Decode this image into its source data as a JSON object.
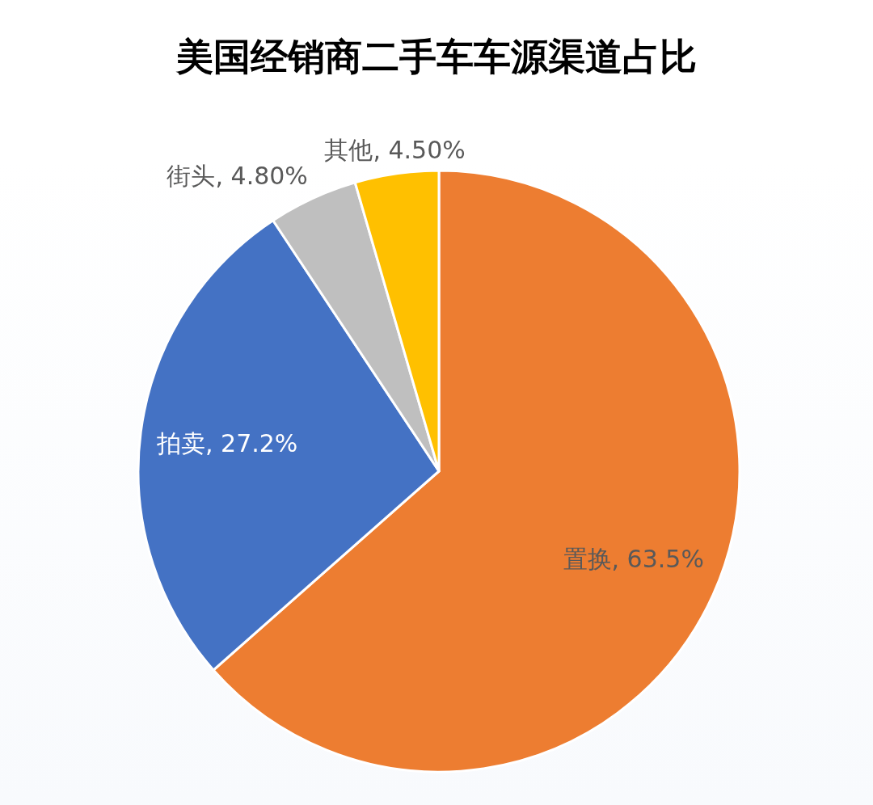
{
  "chart_data": {
    "type": "pie",
    "title": "美国经销商二手车车源渠道占比",
    "categories": [
      "置换",
      "拍卖",
      "街头",
      "其他"
    ],
    "values": [
      63.5,
      27.2,
      4.8,
      4.5
    ],
    "value_labels": [
      "63.5%",
      "27.2%",
      "4.80%",
      "4.50%"
    ],
    "colors": [
      "#ed7d31",
      "#4472c4",
      "#bfbfbf",
      "#ffc000"
    ]
  }
}
